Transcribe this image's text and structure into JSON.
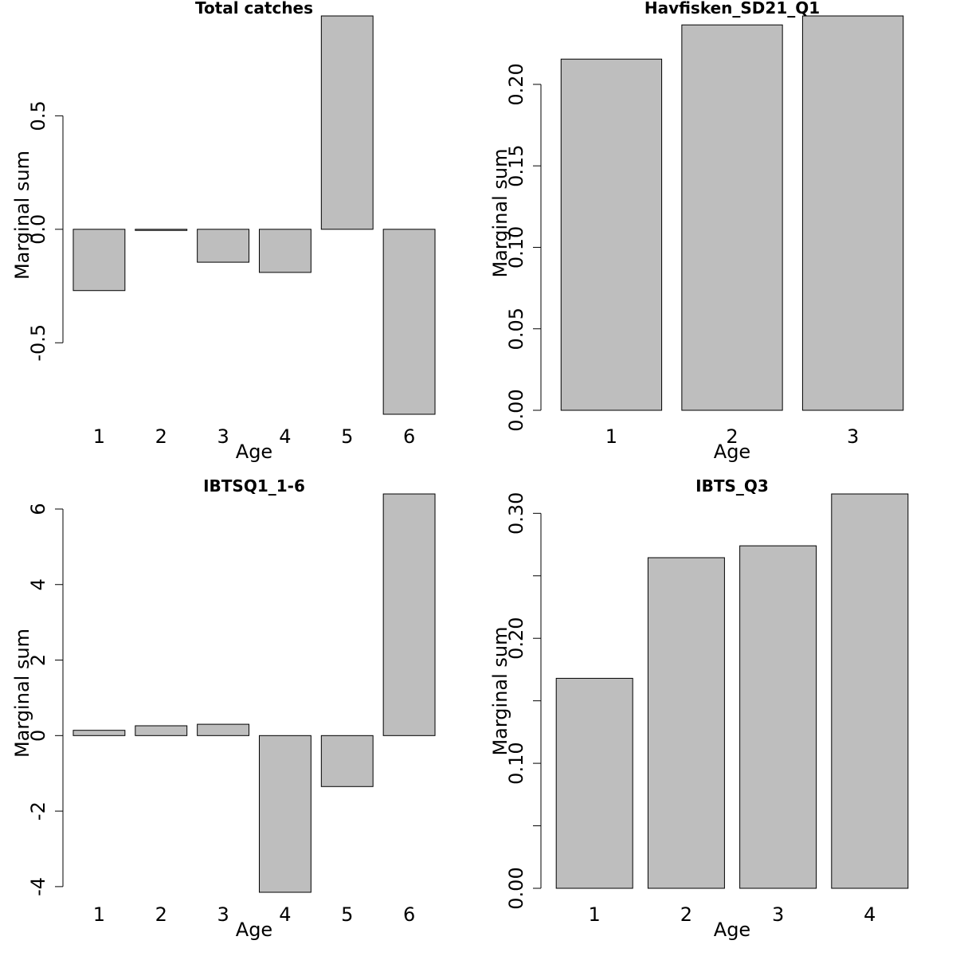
{
  "chart_data": [
    {
      "type": "bar",
      "title": "Total catches",
      "xlabel": "Age",
      "ylabel": "Marginal sum",
      "categories": [
        "1",
        "2",
        "3",
        "4",
        "5",
        "6"
      ],
      "values": [
        -0.27,
        -0.005,
        -0.145,
        -0.19,
        0.94,
        -0.815
      ],
      "ylim": [
        -0.815,
        0.94
      ],
      "yticks": [
        -0.5,
        0.0,
        0.5
      ],
      "ytick_labels": [
        "-0.5",
        "0.0",
        "0.5"
      ],
      "grid": false
    },
    {
      "type": "bar",
      "title": "Havfisken_SD21_Q1",
      "xlabel": "Age",
      "ylabel": "Marginal sum",
      "categories": [
        "1",
        "2",
        "3"
      ],
      "values": [
        0.2155,
        0.2365,
        0.242
      ],
      "ylim": [
        0,
        0.242
      ],
      "yticks": [
        0.0,
        0.05,
        0.1,
        0.15,
        0.2
      ],
      "ytick_labels": [
        "0.00",
        "0.05",
        "0.10",
        "0.15",
        "0.20"
      ],
      "grid": false
    },
    {
      "type": "bar",
      "title": "IBTSQ1_1-6",
      "xlabel": "Age",
      "ylabel": "Marginal sum",
      "categories": [
        "1",
        "2",
        "3",
        "4",
        "5",
        "6"
      ],
      "values": [
        0.14,
        0.26,
        0.3,
        -4.15,
        -1.35,
        6.4
      ],
      "ylim": [
        -4.15,
        6.4
      ],
      "yticks": [
        -4,
        -2,
        0,
        2,
        4,
        6
      ],
      "ytick_labels": [
        "-4",
        "-2",
        "0",
        "2",
        "4",
        "6"
      ],
      "grid": false
    },
    {
      "type": "bar",
      "title": "IBTS_Q3",
      "xlabel": "Age",
      "ylabel": "Marginal sum",
      "categories": [
        "1",
        "2",
        "3",
        "4"
      ],
      "values": [
        0.168,
        0.2645,
        0.274,
        0.3155
      ],
      "ylim": [
        0,
        0.3155
      ],
      "yticks": [
        0.0,
        0.05,
        0.1,
        0.15,
        0.2,
        0.25,
        0.3
      ],
      "ytick_labels": [
        "0.00",
        "",
        "0.10",
        "",
        "0.20",
        "",
        "0.30"
      ],
      "grid": false
    }
  ]
}
